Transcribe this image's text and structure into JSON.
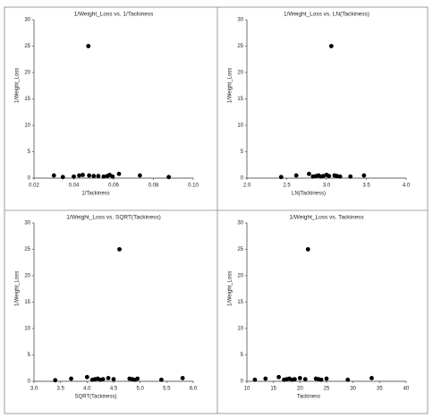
{
  "chart_data": [
    {
      "type": "scatter",
      "title": "1/Weight_Loss vs. 1/Tackiness",
      "x_label": "1/Tackiness",
      "y_label": "1/Weight_Loss",
      "color": "#000000",
      "x": [
        0.03,
        0.0345,
        0.04,
        0.0427,
        0.0445,
        0.0473,
        0.0477,
        0.05,
        0.0523,
        0.055,
        0.0568,
        0.058,
        0.0595,
        0.0627,
        0.0732,
        0.0877
      ],
      "values": [
        0.5,
        0.2,
        0.3,
        0.5,
        0.6,
        25,
        0.5,
        0.4,
        0.4,
        0.3,
        0.4,
        0.6,
        0.3,
        0.8,
        0.5,
        0.2
      ],
      "xlim": [
        0.02,
        0.1
      ],
      "xticks": [
        0.02,
        0.04,
        0.06,
        0.08,
        {
          "value": 0.1,
          "label": "0.10"
        }
      ],
      "ylim": [
        0,
        30
      ],
      "yticks": [
        0,
        5,
        10,
        15,
        20,
        25,
        30
      ]
    },
    {
      "type": "scatter",
      "title": "1/Weight_Loss vs. LN(Tackiness)",
      "x_label": "LN(Tackiness)",
      "y_label": "1/Weight_Loss",
      "color": "#000000",
      "x": [
        2.43,
        2.62,
        2.78,
        2.83,
        2.87,
        2.9,
        2.93,
        2.96,
        3.0,
        3.03,
        3.06,
        3.1,
        3.13,
        3.17,
        3.3,
        3.47
      ],
      "values": [
        0.2,
        0.5,
        0.8,
        0.3,
        0.4,
        0.5,
        0.3,
        0.4,
        0.6,
        0.4,
        25,
        0.5,
        0.4,
        0.3,
        0.3,
        0.5
      ],
      "xlim": [
        2,
        4
      ],
      "xticks": [
        {
          "value": 2,
          "label": "2.0"
        },
        2.5,
        {
          "value": 3,
          "label": "3.0"
        },
        3.5,
        {
          "value": 4,
          "label": "4.0"
        }
      ],
      "ylim": [
        0,
        30
      ],
      "yticks": [
        0,
        5,
        10,
        15,
        20,
        25,
        30
      ]
    },
    {
      "type": "scatter",
      "title": "1/Weight_Loss vs. SQRT(Tackiness)",
      "x_label": "SQRT(Tackiness)",
      "y_label": "1/Weight_Loss",
      "color": "#000000",
      "x": [
        3.4,
        3.7,
        4.0,
        4.1,
        4.15,
        4.2,
        4.25,
        4.3,
        4.4,
        4.5,
        4.61,
        4.8,
        4.85,
        4.9,
        4.95,
        5.4,
        5.8
      ],
      "values": [
        0.2,
        0.5,
        0.8,
        0.3,
        0.4,
        0.5,
        0.3,
        0.4,
        0.6,
        0.4,
        25,
        0.5,
        0.4,
        0.3,
        0.5,
        0.3,
        0.6
      ],
      "xlim": [
        3,
        6
      ],
      "xticks": [
        {
          "value": 3,
          "label": "3.0"
        },
        3.5,
        {
          "value": 4,
          "label": "4.0"
        },
        4.5,
        {
          "value": 5,
          "label": "5.0"
        },
        5.5,
        {
          "value": 6,
          "label": "6.0"
        }
      ],
      "ylim": [
        0,
        30
      ],
      "yticks": [
        0,
        5,
        10,
        15,
        20,
        25,
        30
      ]
    },
    {
      "type": "scatter",
      "title": "1/Weight_Loss vs. Tackiness",
      "x_label": "Tackiness",
      "y_label": "1/Weight_Loss",
      "color": "#000000",
      "x": [
        11.5,
        13.5,
        16,
        17,
        17.5,
        18,
        18.5,
        19,
        20,
        21,
        21.5,
        23,
        23.5,
        24,
        25,
        29,
        33.5
      ],
      "values": [
        0.3,
        0.5,
        0.8,
        0.3,
        0.4,
        0.5,
        0.3,
        0.4,
        0.6,
        0.4,
        25,
        0.5,
        0.4,
        0.3,
        0.5,
        0.3,
        0.6
      ],
      "xlim": [
        10,
        40
      ],
      "xticks": [
        10,
        15,
        20,
        25,
        30,
        35,
        40
      ],
      "ylim": [
        0,
        30
      ],
      "yticks": [
        0,
        5,
        10,
        15,
        20,
        25,
        30
      ]
    }
  ]
}
